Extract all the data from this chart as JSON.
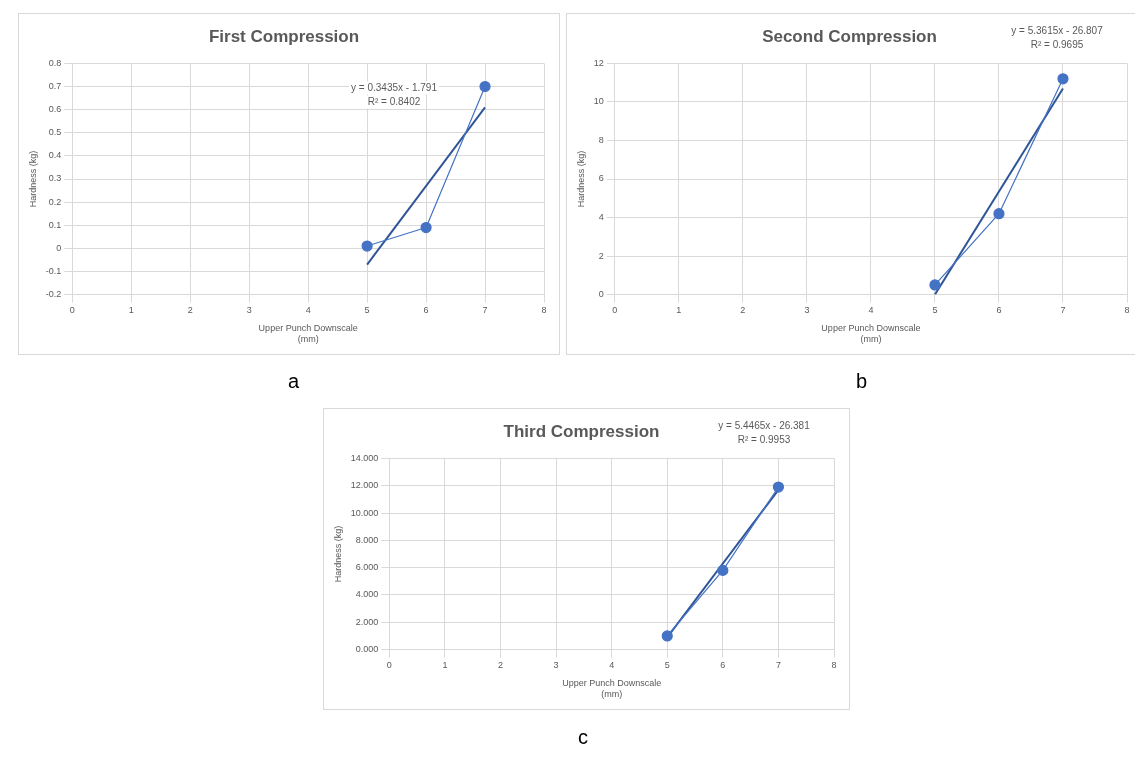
{
  "chart_data": [
    {
      "type": "scatter",
      "title": "First Compression",
      "xlabel": "Upper Punch Downscale\n(mm)",
      "ylabel": "Hardness (kg)",
      "xlim": [
        0,
        8
      ],
      "xticks": [
        0,
        1,
        2,
        3,
        4,
        5,
        6,
        7,
        8
      ],
      "ylim": [
        -0.2,
        0.8
      ],
      "yticks": [
        -0.2,
        -0.1,
        0,
        0.1,
        0.2,
        0.3,
        0.4,
        0.5,
        0.6,
        0.7,
        0.8
      ],
      "grid": true,
      "legend": false,
      "series": [
        {
          "type": "line",
          "color": "#4472c4",
          "x": [
            5,
            6,
            7
          ],
          "values": [
            0.01,
            0.09,
            0.7
          ],
          "marker": "circle"
        },
        {
          "type": "line",
          "color": "#2f5597",
          "x": [
            5,
            7
          ],
          "values": [
            -0.07,
            0.61
          ],
          "marker": "none"
        }
      ],
      "annotations": [
        "y = 0.3435x - 1.791",
        "R² = 0.8402",
        "a"
      ]
    },
    {
      "type": "scatter",
      "title": "Second Compression",
      "xlabel": "Upper Punch Downscale\n(mm)",
      "ylabel": "Hardness (kg)",
      "xlim": [
        0,
        8
      ],
      "xticks": [
        0,
        1,
        2,
        3,
        4,
        5,
        6,
        7,
        8
      ],
      "ylim": [
        0,
        12
      ],
      "yticks": [
        0,
        2,
        4,
        6,
        8,
        10,
        12
      ],
      "grid": true,
      "legend": false,
      "series": [
        {
          "type": "line",
          "color": "#4472c4",
          "x": [
            5,
            6,
            7
          ],
          "values": [
            0.5,
            4.2,
            11.2
          ],
          "marker": "circle"
        },
        {
          "type": "line",
          "color": "#2f5597",
          "x": [
            5,
            7
          ],
          "values": [
            0.0,
            10.7
          ],
          "marker": "none"
        }
      ],
      "annotations": [
        "y = 5.3615x - 26.807",
        "R² = 0.9695",
        "b"
      ]
    },
    {
      "type": "scatter",
      "title": "Third Compression",
      "xlabel": "Upper Punch Downscale\n(mm)",
      "ylabel": "Hardness (kg)",
      "xlim": [
        0,
        8
      ],
      "xticks": [
        0,
        1,
        2,
        3,
        4,
        5,
        6,
        7,
        8
      ],
      "ylim": [
        0,
        14
      ],
      "yticks": [
        {
          "value": 0,
          "label": "0.000"
        },
        {
          "value": 2,
          "label": "2.000"
        },
        {
          "value": 4,
          "label": "4.000"
        },
        {
          "value": 6,
          "label": "6.000"
        },
        {
          "value": 8,
          "label": "8.000"
        },
        {
          "value": 10,
          "label": "10.000"
        },
        {
          "value": 12,
          "label": "12.000"
        },
        {
          "value": 14,
          "label": "14.000"
        }
      ],
      "grid": true,
      "legend": false,
      "series": [
        {
          "type": "line",
          "color": "#4472c4",
          "x": [
            5,
            6,
            7
          ],
          "values": [
            1.0,
            5.8,
            11.9
          ],
          "marker": "circle"
        },
        {
          "type": "line",
          "color": "#2f5597",
          "x": [
            5,
            7
          ],
          "values": [
            0.9,
            11.7
          ],
          "marker": "none"
        }
      ],
      "annotations": [
        "y = 5.4465x - 26.381",
        "R² = 0.9953",
        "c"
      ]
    }
  ]
}
